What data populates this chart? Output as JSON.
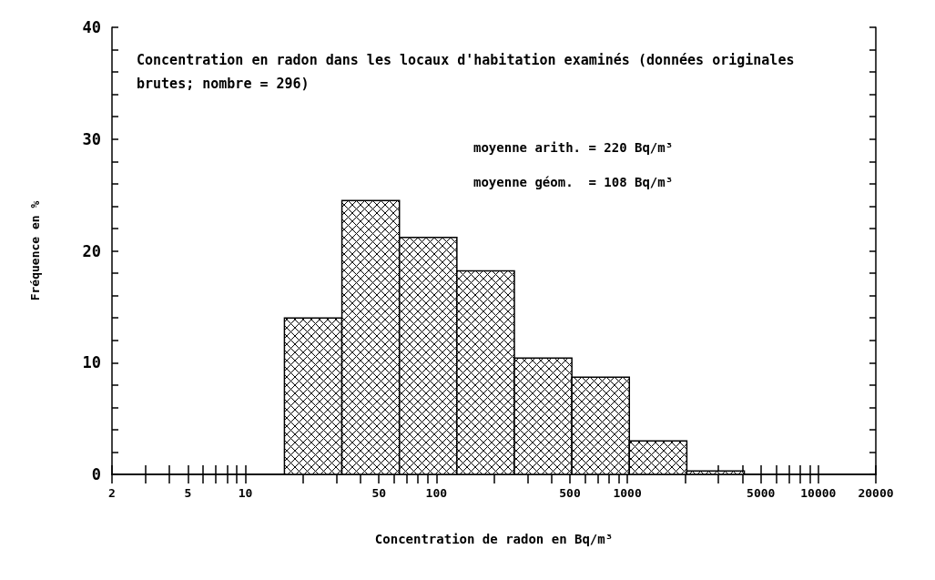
{
  "chart_data": {
    "type": "histogram",
    "title": "Concentration en radon dans les locaux d'habitation examinés (données originales brutes; nombre = 296)",
    "xlabel": "Concentration de radon en Bq/m³",
    "ylabel": "Fréquence en %",
    "annotations": [
      "moyenne arith. = 220 Bq/m³",
      "moyenne géom.  = 108 Bq/m³"
    ],
    "bins": [
      16,
      32,
      64,
      128,
      256,
      512,
      1024,
      2048,
      4096
    ],
    "values": [
      14,
      24.5,
      21.2,
      18.2,
      10.4,
      8.7,
      3.0,
      0.3
    ],
    "color": "#000000",
    "log": "x",
    "grid": false,
    "xlim": [
      2,
      20000
    ],
    "xticks": [
      2,
      {
        "value": 3,
        "label": null
      },
      {
        "value": 4,
        "label": null
      },
      5,
      {
        "value": 6,
        "label": null
      },
      {
        "value": 7,
        "label": null
      },
      {
        "value": 8,
        "label": null
      },
      {
        "value": 9,
        "label": null
      },
      10,
      {
        "value": 20,
        "label": null
      },
      {
        "value": 30,
        "label": null
      },
      {
        "value": 40,
        "label": null
      },
      50,
      {
        "value": 60,
        "label": null
      },
      {
        "value": 70,
        "label": null
      },
      {
        "value": 80,
        "label": null
      },
      {
        "value": 90,
        "label": null
      },
      100,
      {
        "value": 200,
        "label": null
      },
      {
        "value": 300,
        "label": null
      },
      {
        "value": 400,
        "label": null
      },
      500,
      {
        "value": 600,
        "label": null
      },
      {
        "value": 700,
        "label": null
      },
      {
        "value": 800,
        "label": null
      },
      {
        "value": 900,
        "label": null
      },
      1000,
      {
        "value": 2000,
        "label": null
      },
      {
        "value": 3000,
        "label": null
      },
      {
        "value": 4000,
        "label": null
      },
      5000,
      {
        "value": 6000,
        "label": null
      },
      {
        "value": 7000,
        "label": null
      },
      {
        "value": 8000,
        "label": null
      },
      {
        "value": 9000,
        "label": null
      },
      10000,
      20000
    ],
    "ylim": [
      0,
      40
    ],
    "yticks": [
      0,
      {
        "value": 2,
        "label": null
      },
      {
        "value": 4,
        "label": null
      },
      {
        "value": 6,
        "label": null
      },
      {
        "value": 8,
        "label": null
      },
      10,
      {
        "value": 12,
        "label": null
      },
      {
        "value": 14,
        "label": null
      },
      {
        "value": 16,
        "label": null
      },
      {
        "value": 18,
        "label": null
      },
      20,
      {
        "value": 22,
        "label": null
      },
      {
        "value": 24,
        "label": null
      },
      {
        "value": 26,
        "label": null
      },
      {
        "value": 28,
        "label": null
      },
      30,
      {
        "value": 32,
        "label": null
      },
      {
        "value": 34,
        "label": null
      },
      {
        "value": 36,
        "label": null
      },
      {
        "value": 38,
        "label": null
      },
      40
    ]
  }
}
